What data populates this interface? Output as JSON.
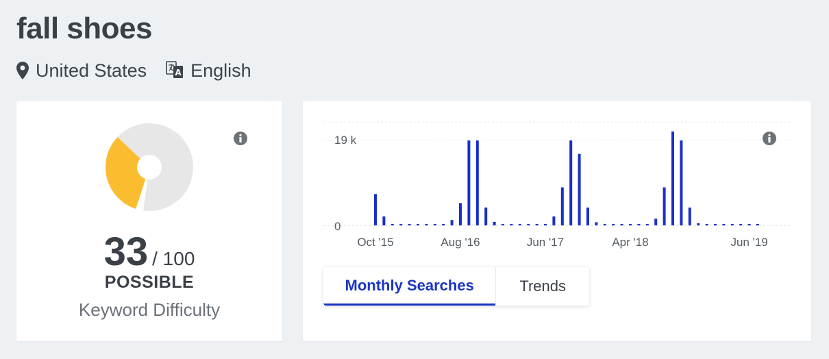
{
  "keyword": "fall shoes",
  "location": {
    "icon": "map-pin-icon",
    "label": "United States"
  },
  "language": {
    "icon": "translate-icon",
    "label": "English"
  },
  "difficulty": {
    "score": "33",
    "out_of": "/ 100",
    "level": "POSSIBLE",
    "caption": "Keyword Difficulty",
    "fraction": 0.33,
    "colors": {
      "filled": "#fbbd30",
      "empty": "#e7e7e7"
    }
  },
  "chart_data": {
    "type": "bar",
    "title": "",
    "xlabel": "",
    "ylabel": "",
    "ytick_labels": [
      "19 k",
      "0"
    ],
    "ylim": [
      0,
      20000
    ],
    "xtick_labels": [
      "Oct '15",
      "Aug '16",
      "Jun '17",
      "Apr '18",
      "Jun '19"
    ],
    "xtick_month_index": [
      0,
      10,
      20,
      30,
      44
    ],
    "start_month": "Oct '15",
    "values": [
      7000,
      2000,
      300,
      300,
      300,
      300,
      300,
      300,
      300,
      1200,
      5000,
      19000,
      19000,
      4000,
      800,
      300,
      300,
      300,
      300,
      300,
      300,
      2000,
      8500,
      19000,
      16000,
      4000,
      700,
      300,
      300,
      300,
      300,
      300,
      300,
      1500,
      8500,
      21000,
      19000,
      4000,
      500,
      300,
      300,
      300,
      300,
      300,
      300,
      300
    ],
    "bar_color": "#1a2fc9",
    "grid": true
  },
  "tabs": [
    {
      "label": "Monthly Searches",
      "active": true
    },
    {
      "label": "Trends",
      "active": false
    }
  ]
}
